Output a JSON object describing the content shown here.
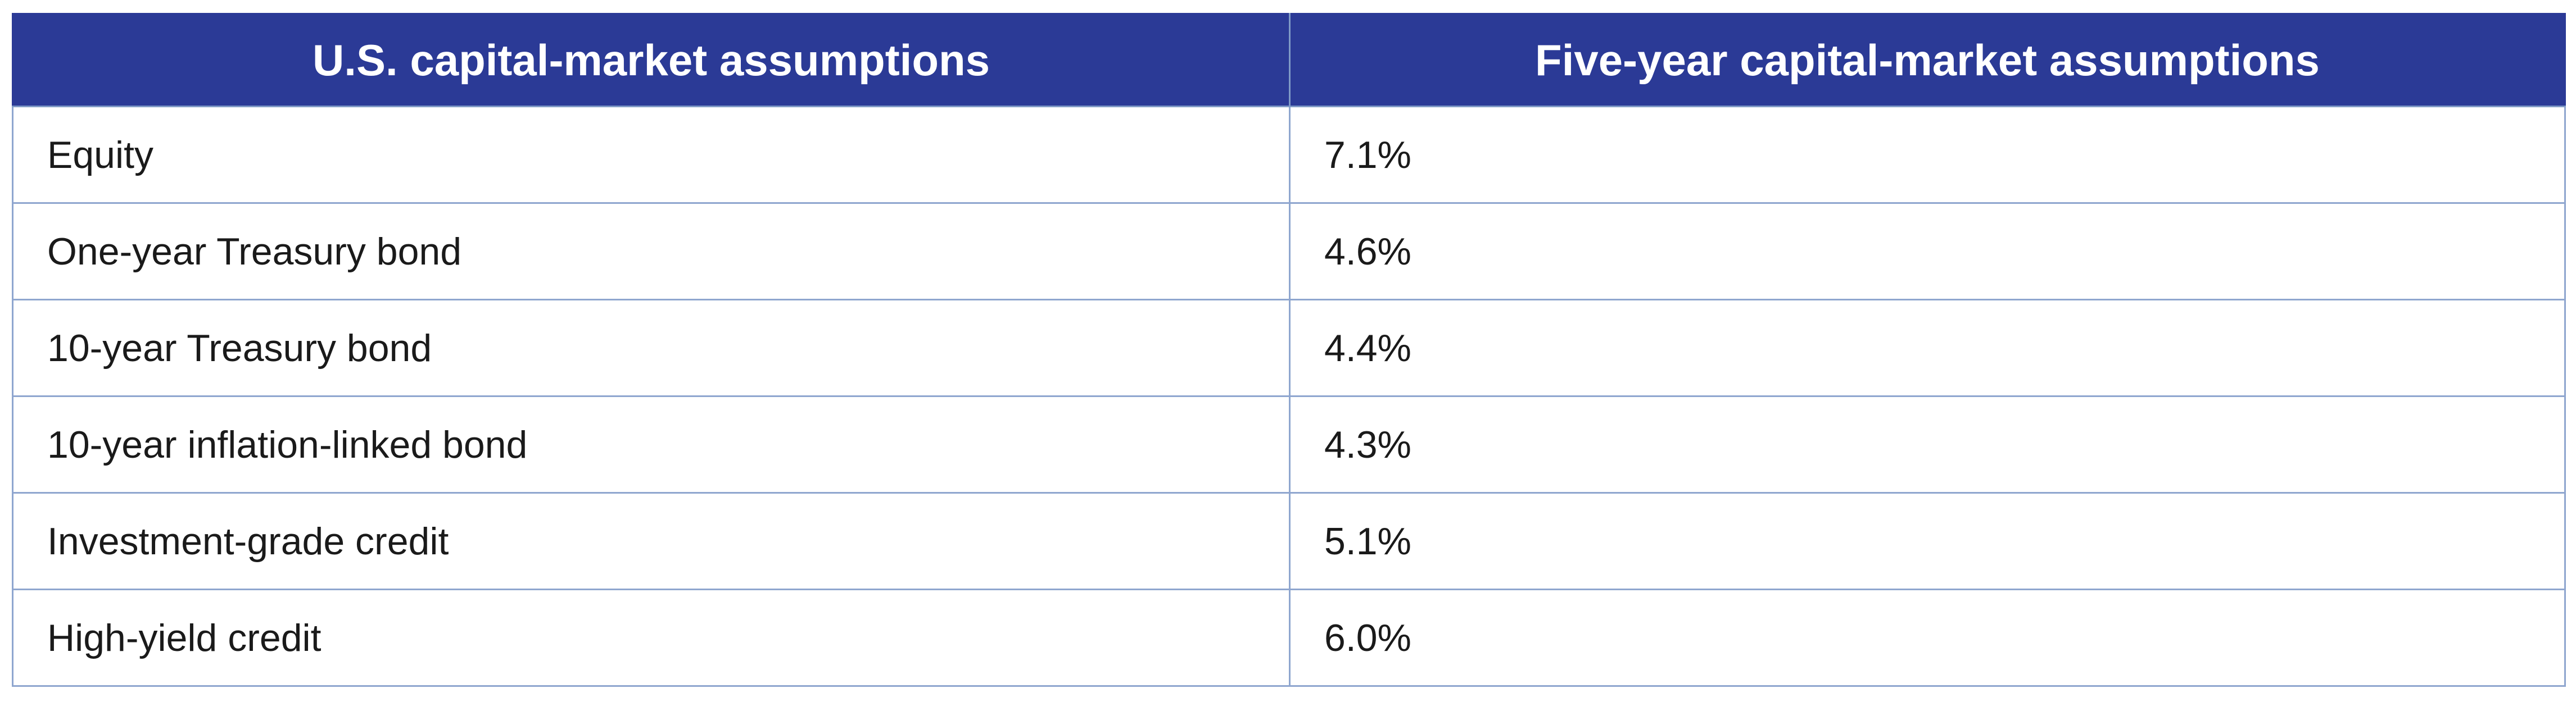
{
  "table": {
    "headers": [
      "U.S. capital-market assumptions",
      "Five-year capital-market assumptions"
    ],
    "rows": [
      {
        "asset": "Equity",
        "value": "7.1%"
      },
      {
        "asset": "One-year Treasury bond",
        "value": "4.6%"
      },
      {
        "asset": "10-year Treasury bond",
        "value": "4.4%"
      },
      {
        "asset": "10-year inflation-linked bond",
        "value": "4.3%"
      },
      {
        "asset": "Investment-grade credit",
        "value": "5.1%"
      },
      {
        "asset": "High-yield credit",
        "value": "6.0%"
      }
    ]
  },
  "colors": {
    "header_background": "#2b3a96",
    "header_text": "#ffffff",
    "border": "#8fa6cf",
    "body_text": "#1a1a1a"
  }
}
